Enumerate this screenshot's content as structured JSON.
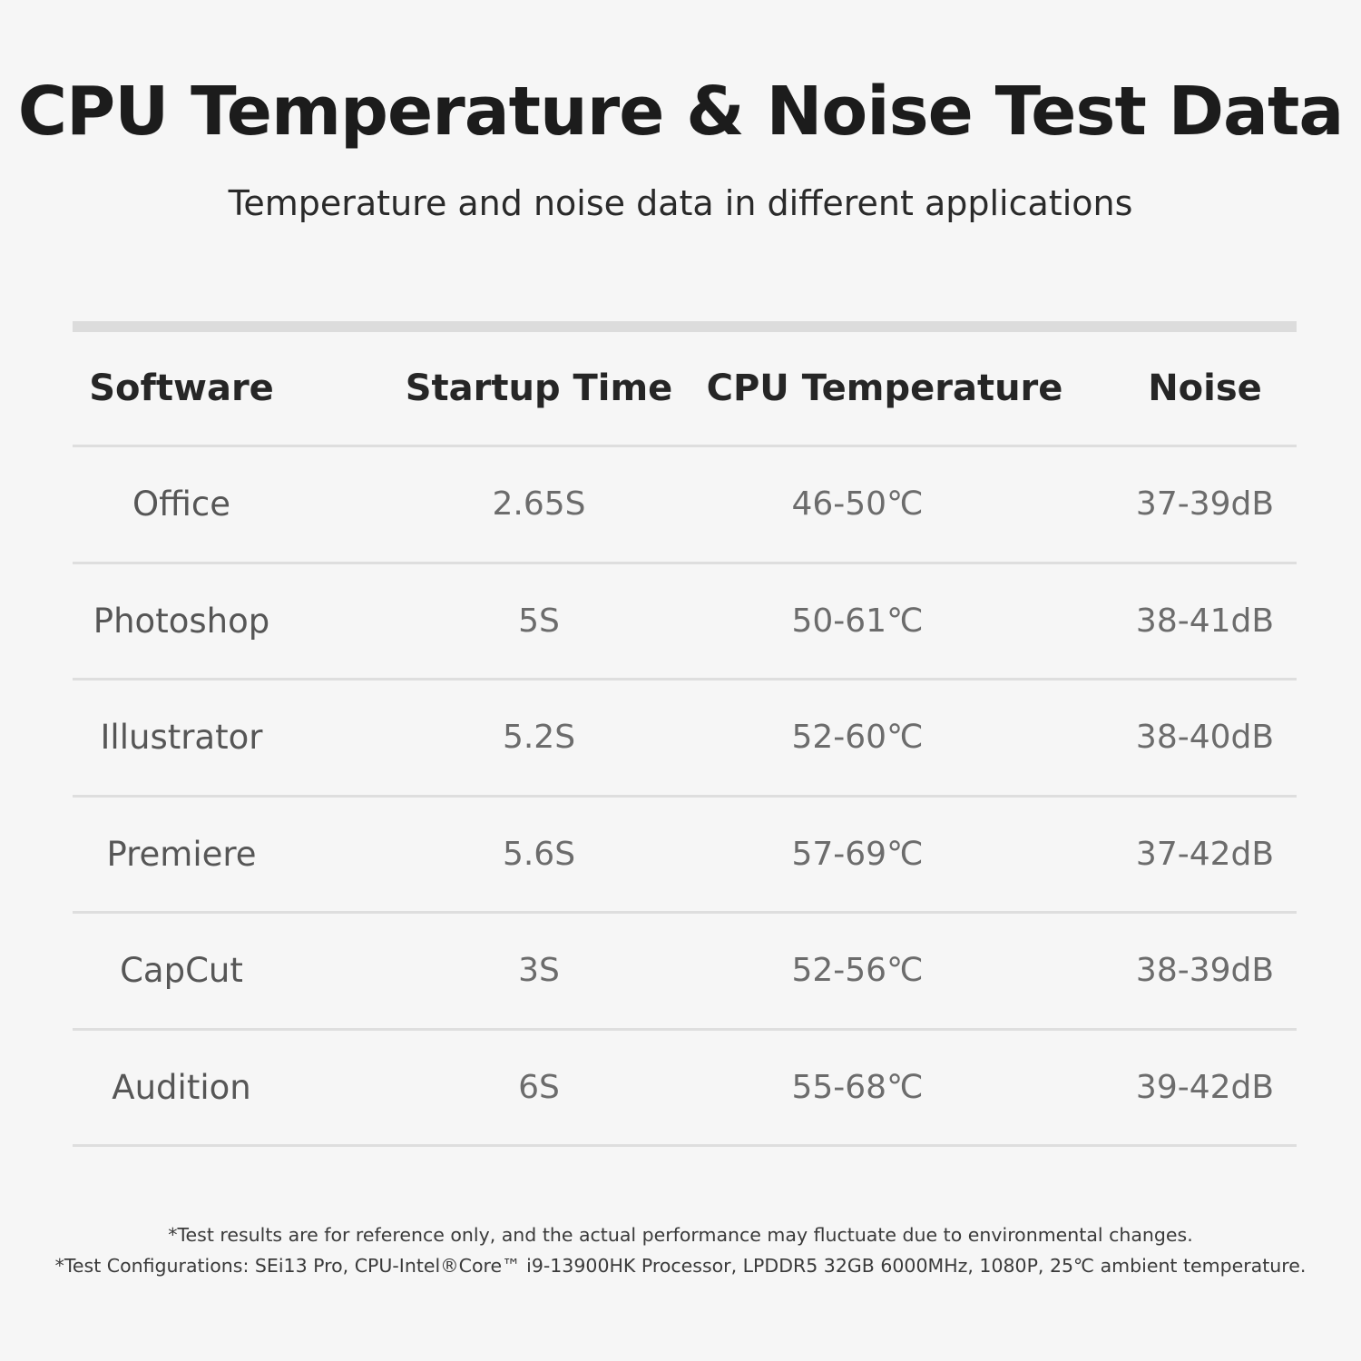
{
  "title": "CPU Temperature & Noise Test Data",
  "subtitle": "Temperature and noise data in different applications",
  "table": {
    "headers": [
      "Software",
      "Startup Time",
      "CPU Temperature",
      "Noise"
    ],
    "rows": [
      [
        "Office",
        "2.65S",
        "46-50℃",
        "37-39dB"
      ],
      [
        "Photoshop",
        "5S",
        "50-61℃",
        "38-41dB"
      ],
      [
        "Illustrator",
        "5.2S",
        "52-60℃",
        "38-40dB"
      ],
      [
        "Premiere",
        "5.6S",
        "57-69℃",
        "37-42dB"
      ],
      [
        "CapCut",
        "3S",
        "52-56℃",
        "38-39dB"
      ],
      [
        "Audition",
        "6S",
        "55-68℃",
        "39-42dB"
      ]
    ]
  },
  "footnotes": [
    "*Test results are for reference only, and the actual performance may fluctuate due to environmental changes.",
    "*Test Configurations: SEi13 Pro, CPU-Intel®Core™ i9-13900HK Processor, LPDDR5 32GB 6000MHz, 1080P, 25℃ ambient temperature."
  ]
}
